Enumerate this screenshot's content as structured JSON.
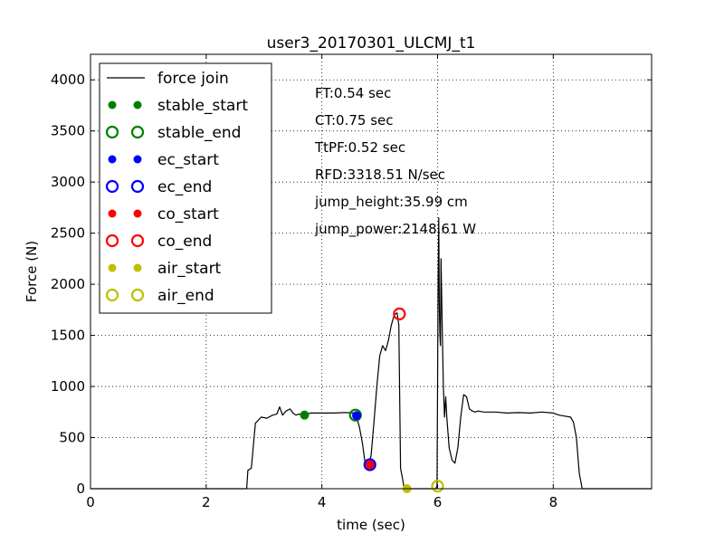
{
  "chart_data": {
    "type": "line",
    "title": "user3_20170301_ULCMJ_t1",
    "xlabel": "time (sec)",
    "ylabel": "Force (N)",
    "xlim": [
      0,
      9.7
    ],
    "ylim": [
      0,
      4250
    ],
    "xticks": [
      0,
      2,
      4,
      6,
      8
    ],
    "yticks": [
      0,
      500,
      1000,
      1500,
      2000,
      2500,
      3000,
      3500,
      4000
    ],
    "grid": true,
    "legend_position": "top-left",
    "series": [
      {
        "name": "force join",
        "color": "#000000",
        "x": [
          0,
          2.6,
          2.7,
          2.72,
          2.78,
          2.85,
          2.95,
          3.05,
          3.15,
          3.22,
          3.27,
          3.32,
          3.38,
          3.45,
          3.5,
          3.55,
          3.6,
          3.7,
          3.8,
          3.9,
          4.0,
          4.2,
          4.4,
          4.55,
          4.6,
          4.65,
          4.7,
          4.75,
          4.8,
          4.85,
          4.9,
          4.95,
          5.0,
          5.05,
          5.1,
          5.15,
          5.2,
          5.25,
          5.3,
          5.33,
          5.36,
          5.4,
          5.42,
          5.44,
          5.46,
          5.48,
          5.5,
          5.55,
          5.6,
          5.65,
          5.7,
          5.8,
          5.9,
          5.97,
          5.99,
          6.0,
          6.01,
          6.02,
          6.03,
          6.04,
          6.05,
          6.06,
          6.08,
          6.1,
          6.12,
          6.14,
          6.16,
          6.2,
          6.25,
          6.3,
          6.35,
          6.4,
          6.45,
          6.5,
          6.55,
          6.6,
          6.65,
          6.7,
          6.8,
          7.0,
          7.2,
          7.4,
          7.6,
          7.8,
          8.0,
          8.1,
          8.2,
          8.3,
          8.35,
          8.4,
          8.45,
          8.5,
          8.52,
          9.7
        ],
        "y": [
          0,
          0,
          0,
          180,
          200,
          640,
          700,
          690,
          720,
          730,
          800,
          720,
          760,
          780,
          740,
          720,
          730,
          720,
          740,
          740,
          740,
          740,
          745,
          740,
          700,
          600,
          450,
          240,
          230,
          320,
          650,
          1000,
          1300,
          1400,
          1350,
          1450,
          1600,
          1700,
          1720,
          1600,
          200,
          80,
          10,
          0,
          0,
          0,
          0,
          0,
          0,
          0,
          0,
          0,
          0,
          0,
          30,
          1000,
          2000,
          2650,
          1800,
          1500,
          1400,
          2250,
          1600,
          1000,
          700,
          900,
          700,
          400,
          280,
          250,
          400,
          700,
          920,
          900,
          780,
          760,
          750,
          760,
          750,
          750,
          740,
          745,
          740,
          750,
          740,
          720,
          710,
          700,
          650,
          500,
          150,
          0,
          0,
          0
        ]
      }
    ],
    "markers": [
      {
        "name": "stable_start",
        "color": "#008000",
        "filled": true,
        "x": 3.7,
        "y": 720
      },
      {
        "name": "stable_end",
        "color": "#008000",
        "filled": false,
        "x": 4.58,
        "y": 720
      },
      {
        "name": "ec_start",
        "color": "#0000ff",
        "filled": true,
        "x": 4.6,
        "y": 715
      },
      {
        "name": "ec_end",
        "color": "#0000ff",
        "filled": false,
        "x": 4.83,
        "y": 235
      },
      {
        "name": "co_start",
        "color": "#ff0000",
        "filled": true,
        "x": 4.83,
        "y": 235
      },
      {
        "name": "co_end",
        "color": "#ff0000",
        "filled": false,
        "x": 5.34,
        "y": 1710
      },
      {
        "name": "air_start",
        "color": "#bfbf00",
        "filled": true,
        "x": 5.47,
        "y": 0
      },
      {
        "name": "air_end",
        "color": "#bfbf00",
        "filled": false,
        "x": 6.0,
        "y": 25
      }
    ],
    "annotations": [
      "FT:0.54 sec",
      "CT:0.75 sec",
      "TtPF:0.52 sec",
      "RFD:3318.51 N/sec",
      "jump_height:35.99 cm",
      "jump_power:2148.61 W"
    ]
  }
}
